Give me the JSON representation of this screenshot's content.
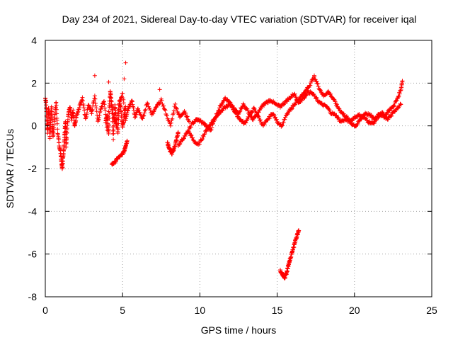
{
  "chart_data": {
    "type": "scatter",
    "title": "Day 234 of 2021, Sidereal Day-to-day VTEC variation (SDTVAR) for receiver iqal",
    "xlabel": "GPS time / hours",
    "ylabel": "SDTVAR / TECUs",
    "xlim": [
      0,
      25
    ],
    "ylim": [
      -8,
      4
    ],
    "xticks": [
      0,
      5,
      10,
      15,
      20,
      25
    ],
    "yticks": [
      -8,
      -6,
      -4,
      -2,
      0,
      2,
      4
    ],
    "xtick_labels": [
      "0",
      "5",
      "10",
      "15",
      "20",
      "25"
    ],
    "ytick_labels": [
      "-8",
      "-6",
      "-4",
      "-2",
      "0",
      "2",
      "4"
    ],
    "grid": true,
    "marker": "plus",
    "series_color": "#ff0000",
    "series": [
      {
        "name": "SDTVAR",
        "trace_segments": [
          {
            "x": [
              0.0,
              0.05,
              0.1,
              0.15,
              0.2,
              0.25,
              0.3,
              0.35,
              0.4,
              0.45,
              0.5,
              0.6,
              0.7,
              0.8,
              0.9,
              1.0,
              1.05,
              1.1,
              1.15,
              1.2,
              1.25,
              1.3,
              1.35,
              1.4,
              1.5,
              1.6,
              1.7,
              1.8,
              1.9,
              2.0
            ],
            "y": [
              1.3,
              1.1,
              0.2,
              -0.3,
              0.8,
              0.5,
              -0.6,
              0.3,
              0.9,
              0.0,
              -0.5,
              0.4,
              1.1,
              -0.3,
              -0.9,
              -1.3,
              -1.7,
              -2.0,
              -1.5,
              -1.0,
              -0.4,
              0.2,
              -1.0,
              -0.2,
              0.6,
              0.9,
              0.3,
              0.7,
              0.0,
              0.4
            ]
          },
          {
            "x": [
              2.0,
              2.2,
              2.4,
              2.6,
              2.8,
              3.0,
              3.2,
              3.4,
              3.6,
              3.8,
              4.0,
              4.2,
              4.4,
              4.6,
              4.8,
              5.0,
              5.2,
              5.4,
              5.6,
              5.8,
              6.0
            ],
            "y": [
              0.4,
              0.9,
              1.3,
              0.3,
              1.0,
              0.6,
              1.4,
              0.2,
              0.8,
              1.2,
              -0.2,
              1.6,
              0.5,
              0.0,
              1.1,
              1.5,
              0.3,
              0.9,
              1.2,
              0.4,
              0.8
            ]
          },
          {
            "x": [
              3.9,
              4.0,
              4.1,
              4.2,
              4.3,
              4.4,
              4.5,
              4.6,
              4.7,
              4.8,
              4.9,
              5.0,
              5.1,
              5.2
            ],
            "y": [
              0.2,
              0.5,
              -0.4,
              1.6,
              0.9,
              -0.6,
              1.0,
              0.3,
              -0.3,
              1.2,
              0.7,
              -0.1,
              0.4,
              0.9
            ]
          },
          {
            "x": [
              4.3,
              4.5,
              4.7,
              4.9,
              5.1,
              5.2,
              5.3
            ],
            "y": [
              -1.8,
              -1.7,
              -1.5,
              -1.4,
              -1.2,
              -0.9,
              -0.7
            ]
          },
          {
            "x": [
              6.0,
              6.3,
              6.6,
              6.9,
              7.2,
              7.5,
              7.8,
              8.1,
              8.4,
              8.7,
              9.0,
              9.3
            ],
            "y": [
              0.8,
              0.3,
              1.1,
              0.5,
              0.9,
              1.2,
              0.6,
              0.0,
              1.0,
              0.4,
              0.7,
              0.2
            ]
          },
          {
            "x": [
              7.9,
              8.0,
              8.1,
              8.2,
              8.3,
              8.4,
              8.5,
              8.6
            ],
            "y": [
              -0.8,
              -1.0,
              -1.2,
              -1.3,
              -1.1,
              -0.9,
              -0.6,
              -0.3
            ]
          },
          {
            "x": [
              9.3,
              9.6,
              9.9,
              10.2,
              10.5,
              10.8,
              11.1,
              11.4,
              11.7,
              12.0,
              12.3,
              12.6,
              12.9,
              13.2,
              13.5,
              13.8,
              14.1,
              14.4,
              14.7,
              15.0,
              15.3,
              15.6,
              15.9,
              16.2,
              16.5,
              16.8,
              17.1,
              17.4
            ],
            "y": [
              -0.3,
              -0.7,
              -0.9,
              -0.5,
              -0.1,
              0.2,
              0.5,
              0.7,
              0.9,
              1.0,
              0.6,
              0.3,
              0.1,
              0.5,
              0.8,
              0.4,
              0.0,
              0.3,
              0.6,
              0.2,
              0.0,
              0.5,
              0.8,
              1.1,
              1.3,
              1.6,
              1.9,
              2.3
            ]
          },
          {
            "x": [
              8.6,
              8.9,
              9.2,
              9.5,
              9.8,
              10.1,
              10.4,
              10.7,
              11.0,
              11.3,
              11.6,
              11.9,
              12.2,
              12.5,
              12.8,
              13.1,
              13.4,
              13.7,
              14.0,
              14.3,
              14.6,
              14.9,
              15.2,
              15.5,
              15.8,
              16.1,
              16.4
            ],
            "y": [
              -0.9,
              -0.6,
              -0.3,
              0.1,
              0.3,
              0.2,
              0.0,
              -0.2,
              0.4,
              0.9,
              1.3,
              1.1,
              0.8,
              0.6,
              1.0,
              0.7,
              0.3,
              0.5,
              0.9,
              1.1,
              1.2,
              1.0,
              0.9,
              1.1,
              1.3,
              1.5,
              1.1
            ]
          },
          {
            "x": [
              15.2,
              15.3,
              15.4,
              15.5,
              15.6,
              15.7,
              15.8,
              15.9,
              16.0,
              16.1,
              16.2,
              16.3,
              16.4
            ],
            "y": [
              -6.8,
              -6.9,
              -7.0,
              -7.1,
              -6.9,
              -6.6,
              -6.3,
              -6.1,
              -5.8,
              -5.6,
              -5.3,
              -5.1,
              -4.9
            ]
          },
          {
            "x": [
              17.4,
              17.7,
              18.0,
              18.3,
              18.6,
              18.9,
              19.2,
              19.5,
              19.8,
              20.1,
              20.4,
              20.7,
              21.0,
              21.3,
              21.6,
              21.9,
              22.2,
              22.5,
              22.8,
              23.0,
              23.1
            ],
            "y": [
              2.3,
              1.8,
              1.4,
              1.6,
              1.3,
              0.9,
              0.6,
              0.4,
              0.1,
              0.0,
              0.3,
              0.6,
              0.5,
              0.3,
              0.6,
              0.4,
              0.7,
              0.9,
              1.3,
              1.7,
              2.1
            ]
          },
          {
            "x": [
              16.4,
              16.7,
              17.0,
              17.3,
              17.6,
              17.9,
              18.2,
              18.5,
              18.8,
              19.1,
              19.4,
              19.7,
              20.0,
              20.3,
              20.6,
              20.9,
              21.2,
              21.5,
              21.8,
              22.1,
              22.4,
              22.7,
              23.0
            ],
            "y": [
              1.1,
              1.3,
              1.6,
              1.5,
              1.2,
              1.0,
              0.9,
              0.6,
              0.5,
              0.2,
              0.3,
              0.2,
              0.4,
              0.5,
              0.4,
              0.2,
              0.1,
              0.4,
              0.6,
              0.3,
              0.5,
              0.8,
              1.0
            ]
          }
        ],
        "isolated_points": [
          {
            "x": 3.2,
            "y": 2.35
          },
          {
            "x": 5.2,
            "y": 2.95
          },
          {
            "x": 5.1,
            "y": 2.2
          },
          {
            "x": 4.1,
            "y": 2.05
          },
          {
            "x": 7.4,
            "y": 1.7
          }
        ]
      }
    ]
  }
}
